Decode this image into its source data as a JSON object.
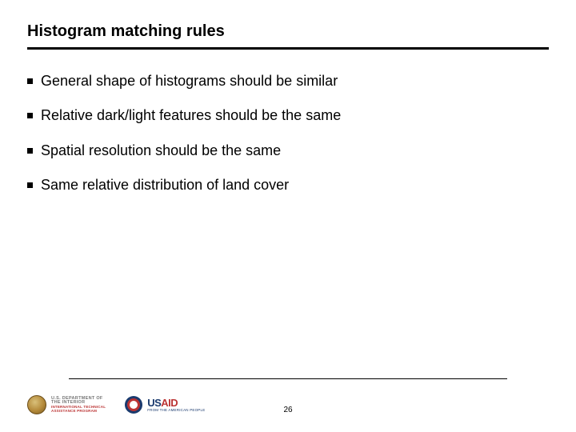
{
  "title": "Histogram matching rules",
  "bullets": [
    "General shape of histograms should be similar",
    "Relative dark/light features should be the same",
    "Spatial resolution should be the same",
    "Same relative distribution of land cover"
  ],
  "footer": {
    "doi": {
      "line1": "U.S. DEPARTMENT OF",
      "line2": "THE INTERIOR",
      "line3": "INTERNATIONAL TECHNICAL",
      "line4": "ASSISTANCE PROGRAM"
    },
    "usaid": {
      "us": "US",
      "aid": "AID",
      "tag": "FROM THE AMERICAN PEOPLE"
    },
    "page": "26"
  }
}
